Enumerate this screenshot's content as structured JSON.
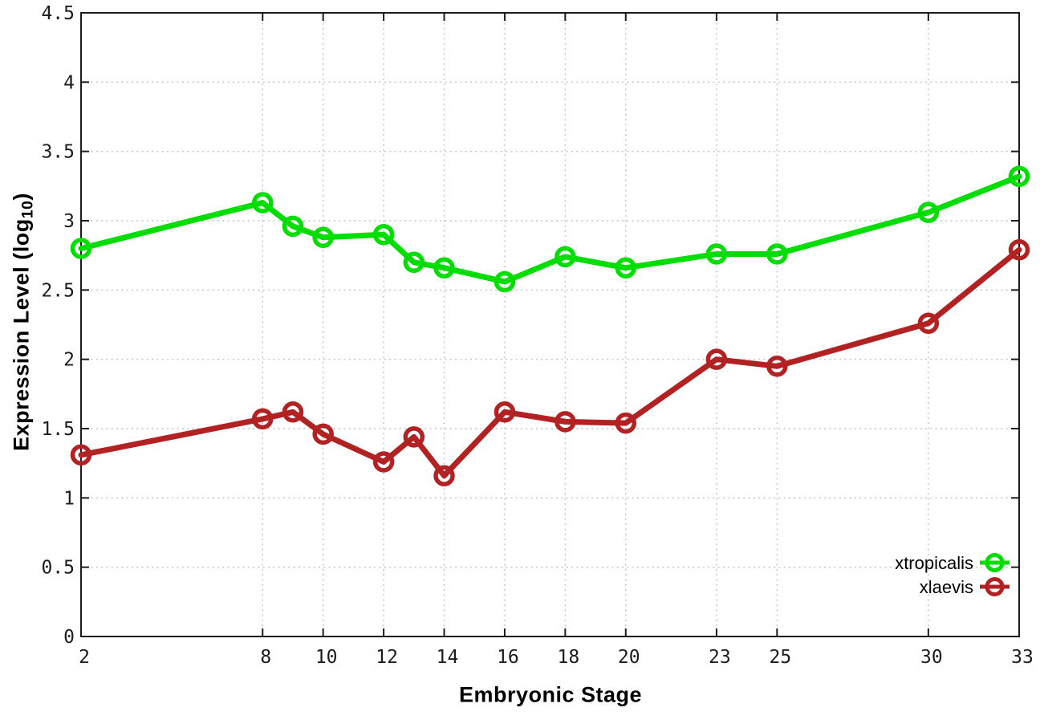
{
  "figure": {
    "background": "#ffffff",
    "border_color": "#1c1c1c",
    "grid_color": "#bdbdbd",
    "tick_label_color": "#1c1c1c"
  },
  "axes": {
    "x_title": "Embryonic Stage",
    "y_title_main": "Expression Level (log",
    "y_title_sub": "10",
    "y_title_end": ")",
    "x_tick_labels": [
      "2",
      "8",
      "10",
      "12",
      "14",
      "16",
      "18",
      "20",
      "23",
      "25",
      "30",
      "33"
    ],
    "y_tick_labels": [
      "0",
      "0.5",
      "1",
      "1.5",
      "2",
      "2.5",
      "3",
      "3.5",
      "4",
      "4.5"
    ]
  },
  "chart_data": {
    "type": "line",
    "title": "",
    "xlabel": "Embryonic Stage",
    "ylabel": "Expression Level (log10)",
    "x": [
      2,
      8,
      9,
      10,
      12,
      13,
      14,
      16,
      18,
      20,
      23,
      25,
      30,
      33
    ],
    "series": [
      {
        "name": "xtropicalis",
        "color": "#00dd00",
        "values": [
          2.8,
          3.13,
          2.96,
          2.88,
          2.9,
          2.7,
          2.66,
          2.56,
          2.74,
          2.66,
          2.76,
          2.76,
          3.06,
          3.32
        ]
      },
      {
        "name": "xlaevis",
        "color": "#b22222",
        "values": [
          1.31,
          1.57,
          1.62,
          1.46,
          1.26,
          1.44,
          1.16,
          1.62,
          1.55,
          1.54,
          2.0,
          1.95,
          2.26,
          2.79
        ]
      }
    ],
    "xlim": [
      2,
      33
    ],
    "ylim": [
      0,
      4.5
    ],
    "xticks": [
      2,
      8,
      10,
      12,
      14,
      16,
      18,
      20,
      23,
      25,
      30,
      33
    ],
    "yticks": [
      0,
      0.5,
      1,
      1.5,
      2,
      2.5,
      3,
      3.5,
      4,
      4.5
    ],
    "grid": true,
    "marker": "open-circle",
    "legend_position": "inside-bottom-right"
  }
}
